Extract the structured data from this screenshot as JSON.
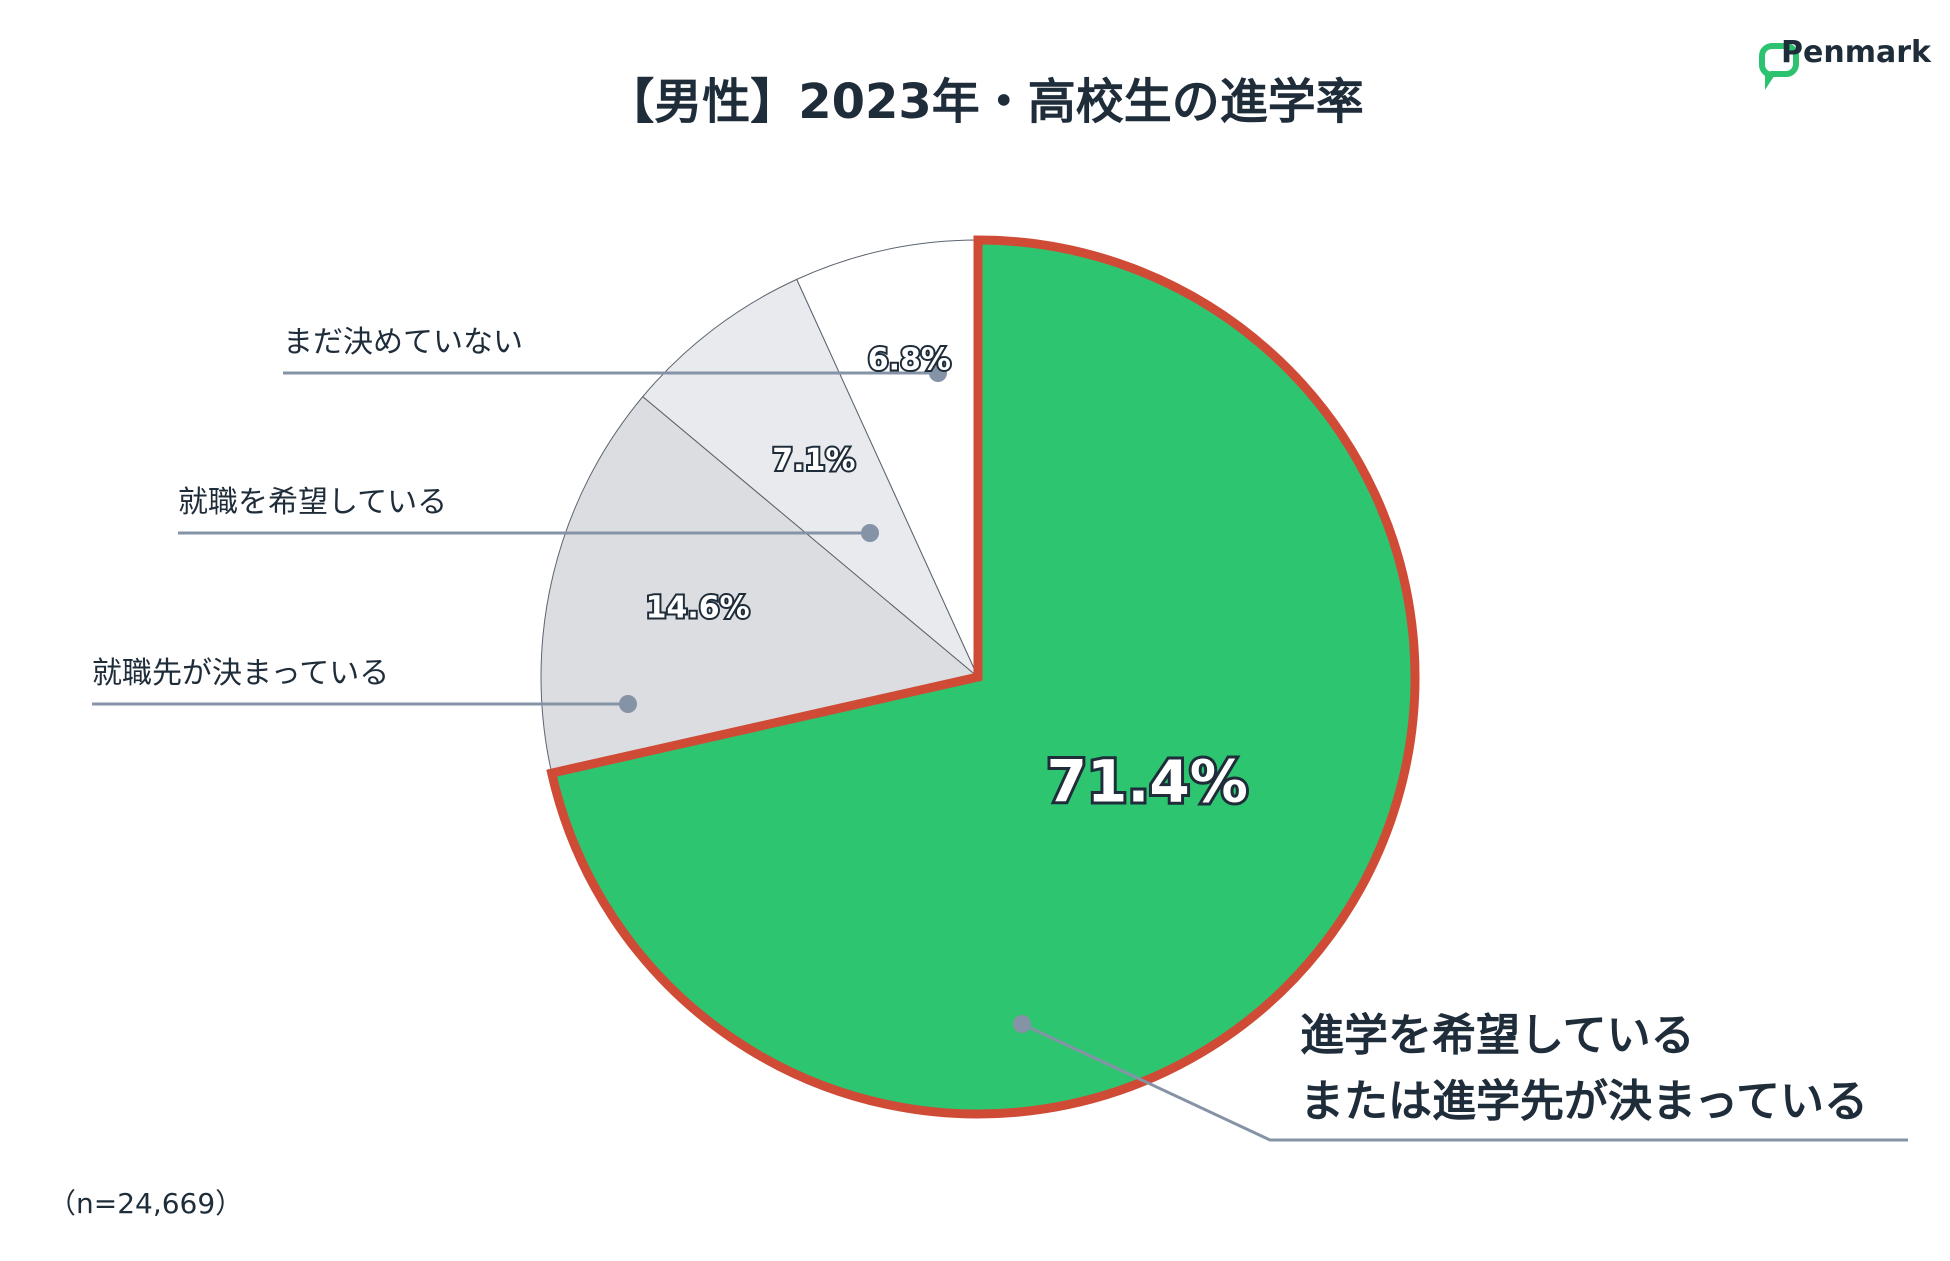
{
  "title": "【男性】2023年・高校生の進学率",
  "brand": {
    "name": "Penmark",
    "logo_color": "#2dc26f"
  },
  "sample_size": "（n=24,669）",
  "chart_data": {
    "type": "pie",
    "title": "【男性】2023年・高校生の進学率",
    "start_angle_deg": 0,
    "direction": "clockwise",
    "slices": [
      {
        "label_lines": [
          "進学を希望している",
          "または進学先が決まっている"
        ],
        "value": 71.4,
        "value_label": "71.4%",
        "color": "#2ec571",
        "highlight": true,
        "highlight_color": "#cf4b36"
      },
      {
        "label_lines": [
          "就職先が決まっている"
        ],
        "value": 14.6,
        "value_label": "14.6%",
        "color": "#dcdde1"
      },
      {
        "label_lines": [
          "就職を希望している"
        ],
        "value": 7.1,
        "value_label": "7.1%",
        "color": "#e8eaee"
      },
      {
        "label_lines": [
          "まだ決めていない"
        ],
        "value": 6.8,
        "value_label": "6.8%",
        "color": "#ffffff"
      }
    ],
    "leader_color": "#8593a6"
  }
}
